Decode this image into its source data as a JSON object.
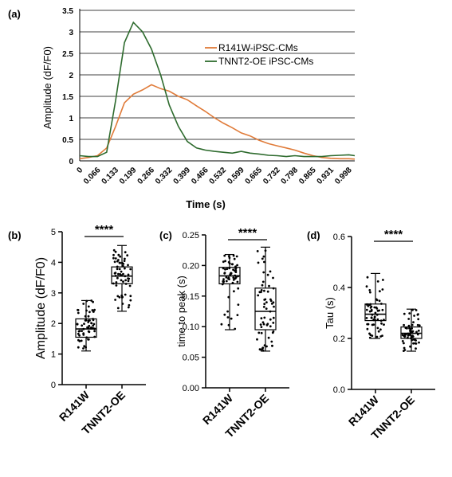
{
  "colors": {
    "r141w": "#e07b39",
    "tnnt2": "#2e6b2e",
    "axis": "#000000"
  },
  "panels": {
    "a": {
      "label": "(a)",
      "chart_data": {
        "type": "line",
        "xlabel": "Time (s)",
        "ylabel": "Amplitude (dF/F0)",
        "ylim": [
          0,
          3.5
        ],
        "yticks": [
          "0",
          "0.5",
          "1",
          "1.5",
          "2",
          "2.5",
          "3",
          "3.5"
        ],
        "xticks": [
          "0",
          "0.066",
          "0.133",
          "0.199",
          "0.266",
          "0.332",
          "0.399",
          "0.466",
          "0.532",
          "0.599",
          "0.665",
          "0.732",
          "0.798",
          "0.865",
          "0.931",
          "0.998"
        ],
        "xlim": [
          0,
          1.02
        ],
        "grid": "horizontal",
        "legend_position": "right",
        "series": [
          {
            "name": "R141W-iPSC-CMs",
            "color": "#e07b39",
            "x": [
              0,
              0.033,
              0.066,
              0.1,
              0.133,
              0.166,
              0.199,
              0.233,
              0.266,
              0.3,
              0.332,
              0.366,
              0.399,
              0.433,
              0.466,
              0.5,
              0.532,
              0.566,
              0.599,
              0.632,
              0.665,
              0.7,
              0.732,
              0.766,
              0.798,
              0.832,
              0.865,
              0.898,
              0.931,
              0.965,
              0.998,
              1.02
            ],
            "y": [
              0.05,
              0.08,
              0.12,
              0.3,
              0.8,
              1.35,
              1.55,
              1.65,
              1.77,
              1.68,
              1.62,
              1.5,
              1.42,
              1.28,
              1.15,
              1.0,
              0.88,
              0.77,
              0.65,
              0.58,
              0.48,
              0.4,
              0.35,
              0.3,
              0.25,
              0.18,
              0.12,
              0.08,
              0.06,
              0.05,
              0.05,
              0.04
            ]
          },
          {
            "name": "TNNT2-OE iPSC-CMs",
            "color": "#2e6b2e",
            "x": [
              0,
              0.033,
              0.066,
              0.1,
              0.133,
              0.166,
              0.199,
              0.233,
              0.266,
              0.3,
              0.332,
              0.366,
              0.399,
              0.433,
              0.466,
              0.5,
              0.532,
              0.566,
              0.599,
              0.632,
              0.665,
              0.7,
              0.732,
              0.766,
              0.798,
              0.832,
              0.865,
              0.898,
              0.931,
              0.965,
              0.998,
              1.02
            ],
            "y": [
              0.12,
              0.1,
              0.1,
              0.2,
              1.4,
              2.75,
              3.22,
              3.0,
              2.6,
              2.0,
              1.3,
              0.8,
              0.45,
              0.3,
              0.25,
              0.22,
              0.2,
              0.18,
              0.22,
              0.18,
              0.16,
              0.13,
              0.12,
              0.1,
              0.12,
              0.1,
              0.1,
              0.1,
              0.12,
              0.13,
              0.14,
              0.12
            ]
          }
        ]
      }
    },
    "b": {
      "label": "(b)",
      "stars": "****",
      "chart_data": {
        "type": "box",
        "ylabel": "Amplitude (dF/F0)",
        "ylim": [
          0,
          5
        ],
        "yticks": [
          "0",
          "1",
          "2",
          "3",
          "4",
          "5"
        ],
        "categories": [
          "R141W",
          "TNNT2-OE"
        ],
        "boxes": [
          {
            "min": 1.1,
            "q1": 1.55,
            "median": 1.82,
            "q3": 2.15,
            "max": 2.75
          },
          {
            "min": 2.4,
            "q1": 3.3,
            "median": 3.55,
            "q3": 3.85,
            "max": 4.55
          }
        ]
      }
    },
    "c": {
      "label": "(c)",
      "stars": "****",
      "chart_data": {
        "type": "box",
        "ylabel": "time to peak (s)",
        "ylim": [
          0,
          0.25
        ],
        "yticks": [
          "0.00",
          "0.05",
          "0.10",
          "0.15",
          "0.20",
          "0.25"
        ],
        "categories": [
          "R141W",
          "TNNT2-OE"
        ],
        "boxes": [
          {
            "min": 0.095,
            "q1": 0.17,
            "median": 0.183,
            "q3": 0.197,
            "max": 0.218
          },
          {
            "min": 0.06,
            "q1": 0.095,
            "median": 0.125,
            "q3": 0.163,
            "max": 0.23
          }
        ]
      }
    },
    "d": {
      "label": "(d)",
      "stars": "****",
      "chart_data": {
        "type": "box",
        "ylabel": "Tau (s)",
        "ylim": [
          0,
          0.6
        ],
        "yticks": [
          "0.0",
          "0.2",
          "0.4",
          "0.6"
        ],
        "categories": [
          "R141W",
          "TNNT2-OE"
        ],
        "boxes": [
          {
            "min": 0.2,
            "q1": 0.27,
            "median": 0.295,
            "q3": 0.335,
            "max": 0.455
          },
          {
            "min": 0.15,
            "q1": 0.2,
            "median": 0.22,
            "q3": 0.245,
            "max": 0.315
          }
        ]
      }
    }
  }
}
